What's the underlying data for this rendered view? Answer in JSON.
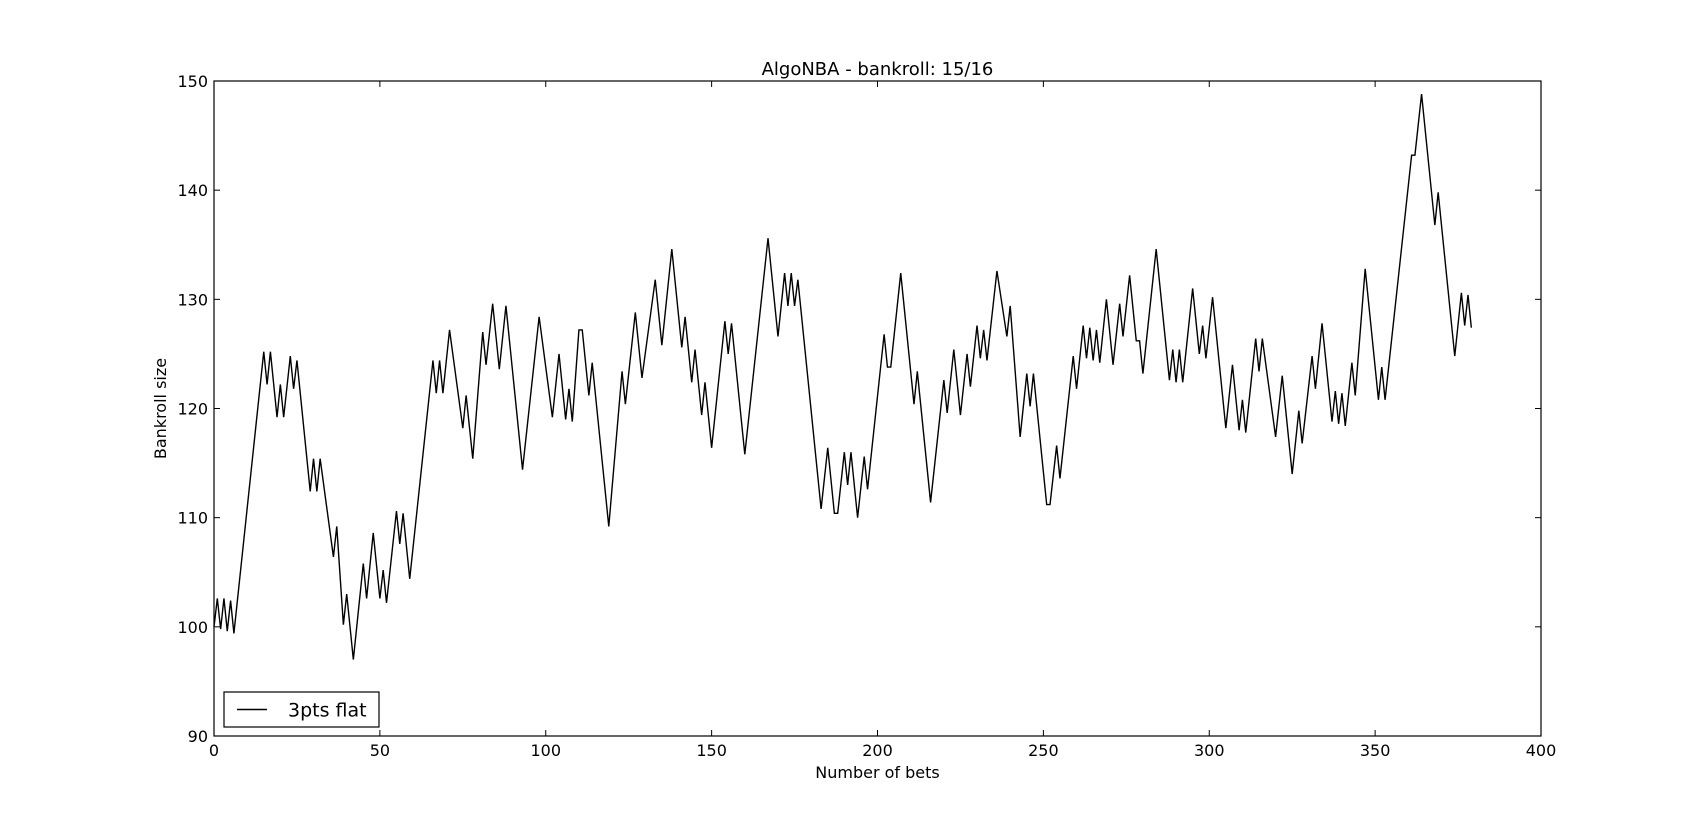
{
  "chart_data": {
    "type": "line",
    "title": "AlgoNBA - bankroll: 15/16",
    "xlabel": "Number of bets",
    "ylabel": "Bankroll size",
    "xlim": [
      0,
      400
    ],
    "ylim": [
      90,
      150
    ],
    "xticks": [
      0,
      50,
      100,
      150,
      200,
      250,
      300,
      350,
      400
    ],
    "yticks": [
      90,
      100,
      110,
      120,
      130,
      140,
      150
    ],
    "xtick_labels": [
      "0",
      "50",
      "100",
      "150",
      "200",
      "250",
      "300",
      "350",
      "400"
    ],
    "ytick_labels": [
      "90",
      "100",
      "110",
      "120",
      "130",
      "140",
      "150"
    ],
    "grid": false,
    "legend_position": "lower-left",
    "series": [
      {
        "name": "3pts flat",
        "color": "#000000",
        "points": [
          [
            0,
            100
          ],
          [
            1,
            102.6
          ],
          [
            2,
            99.8
          ],
          [
            3,
            102.6
          ],
          [
            4,
            99.6
          ],
          [
            5,
            102.4
          ],
          [
            6,
            99.4
          ],
          [
            15,
            125.2
          ],
          [
            16,
            122.2
          ],
          [
            17,
            125.2
          ],
          [
            19,
            119.2
          ],
          [
            20,
            122.2
          ],
          [
            21,
            119.2
          ],
          [
            23,
            124.8
          ],
          [
            24,
            121.8
          ],
          [
            25,
            124.4
          ],
          [
            29,
            112.4
          ],
          [
            30,
            115.4
          ],
          [
            31,
            112.4
          ],
          [
            32,
            115.4
          ],
          [
            36,
            106.4
          ],
          [
            37,
            109.2
          ],
          [
            39,
            100.2
          ],
          [
            40,
            103.0
          ],
          [
            42,
            97.0
          ],
          [
            45,
            105.8
          ],
          [
            46,
            102.6
          ],
          [
            48,
            108.6
          ],
          [
            50,
            102.6
          ],
          [
            51,
            105.2
          ],
          [
            52,
            102.2
          ],
          [
            55,
            110.6
          ],
          [
            56,
            107.6
          ],
          [
            57,
            110.4
          ],
          [
            59,
            104.4
          ],
          [
            66,
            124.4
          ],
          [
            67,
            121.4
          ],
          [
            68,
            124.4
          ],
          [
            69,
            121.4
          ],
          [
            71,
            127.2
          ],
          [
            75,
            118.2
          ],
          [
            76,
            121.2
          ],
          [
            78,
            115.4
          ],
          [
            81,
            127.0
          ],
          [
            82,
            124.0
          ],
          [
            84,
            129.6
          ],
          [
            86,
            123.6
          ],
          [
            88,
            129.4
          ],
          [
            93,
            114.4
          ],
          [
            98,
            128.4
          ],
          [
            102,
            119.2
          ],
          [
            104,
            125.0
          ],
          [
            106,
            119.0
          ],
          [
            107,
            121.8
          ],
          [
            108,
            118.8
          ],
          [
            110,
            127.2
          ],
          [
            111,
            127.2
          ],
          [
            113,
            121.2
          ],
          [
            114,
            124.2
          ],
          [
            119,
            109.2
          ],
          [
            123,
            123.4
          ],
          [
            124,
            120.4
          ],
          [
            127,
            128.8
          ],
          [
            129,
            122.8
          ],
          [
            133,
            131.8
          ],
          [
            135,
            125.8
          ],
          [
            138,
            134.6
          ],
          [
            141,
            125.6
          ],
          [
            142,
            128.4
          ],
          [
            144,
            122.4
          ],
          [
            145,
            125.4
          ],
          [
            147,
            119.4
          ],
          [
            148,
            122.4
          ],
          [
            150,
            116.4
          ],
          [
            154,
            128.0
          ],
          [
            155,
            125.0
          ],
          [
            156,
            127.8
          ],
          [
            160,
            115.8
          ],
          [
            167,
            135.6
          ],
          [
            170,
            126.6
          ],
          [
            172,
            132.4
          ],
          [
            173,
            129.4
          ],
          [
            174,
            132.4
          ],
          [
            175,
            129.4
          ],
          [
            176,
            131.8
          ],
          [
            183,
            110.8
          ],
          [
            185,
            116.4
          ],
          [
            187,
            110.4
          ],
          [
            188,
            110.4
          ],
          [
            190,
            116.0
          ],
          [
            191,
            113.0
          ],
          [
            192,
            116.0
          ],
          [
            194,
            110.0
          ],
          [
            196,
            115.6
          ],
          [
            197,
            112.6
          ],
          [
            202,
            126.8
          ],
          [
            203,
            123.8
          ],
          [
            204,
            123.8
          ],
          [
            207,
            132.4
          ],
          [
            211,
            120.4
          ],
          [
            212,
            123.4
          ],
          [
            216,
            111.4
          ],
          [
            220,
            122.6
          ],
          [
            221,
            119.6
          ],
          [
            223,
            125.4
          ],
          [
            225,
            119.4
          ],
          [
            227,
            125.0
          ],
          [
            228,
            122.0
          ],
          [
            230,
            127.6
          ],
          [
            231,
            124.6
          ],
          [
            232,
            127.2
          ],
          [
            233,
            124.4
          ],
          [
            236,
            132.6
          ],
          [
            239,
            126.6
          ],
          [
            240,
            129.4
          ],
          [
            243,
            117.4
          ],
          [
            245,
            123.2
          ],
          [
            246,
            120.2
          ],
          [
            247,
            123.2
          ],
          [
            251,
            111.2
          ],
          [
            252,
            111.2
          ],
          [
            254,
            116.6
          ],
          [
            255,
            113.6
          ],
          [
            259,
            124.8
          ],
          [
            260,
            121.8
          ],
          [
            262,
            127.6
          ],
          [
            263,
            124.6
          ],
          [
            264,
            127.4
          ],
          [
            265,
            124.4
          ],
          [
            266,
            127.2
          ],
          [
            267,
            124.2
          ],
          [
            269,
            130.0
          ],
          [
            271,
            124.0
          ],
          [
            273,
            129.6
          ],
          [
            274,
            126.6
          ],
          [
            276,
            132.2
          ],
          [
            278,
            126.2
          ],
          [
            279,
            126.2
          ],
          [
            280,
            123.2
          ],
          [
            284,
            134.6
          ],
          [
            288,
            122.6
          ],
          [
            289,
            125.4
          ],
          [
            290,
            122.4
          ],
          [
            291,
            125.4
          ],
          [
            292,
            122.4
          ],
          [
            295,
            131.0
          ],
          [
            297,
            125.0
          ],
          [
            298,
            127.6
          ],
          [
            299,
            124.6
          ],
          [
            301,
            130.2
          ],
          [
            305,
            118.2
          ],
          [
            307,
            124.0
          ],
          [
            309,
            118.0
          ],
          [
            310,
            120.8
          ],
          [
            311,
            117.8
          ],
          [
            314,
            126.4
          ],
          [
            315,
            123.4
          ],
          [
            316,
            126.4
          ],
          [
            320,
            117.4
          ],
          [
            322,
            123.0
          ],
          [
            325,
            114.0
          ],
          [
            327,
            119.8
          ],
          [
            328,
            116.8
          ],
          [
            331,
            124.8
          ],
          [
            332,
            121.8
          ],
          [
            334,
            127.8
          ],
          [
            337,
            118.8
          ],
          [
            338,
            121.6
          ],
          [
            339,
            118.6
          ],
          [
            340,
            121.4
          ],
          [
            341,
            118.4
          ],
          [
            343,
            124.2
          ],
          [
            344,
            121.2
          ],
          [
            347,
            132.8
          ],
          [
            351,
            120.8
          ],
          [
            352,
            123.8
          ],
          [
            353,
            120.8
          ],
          [
            361,
            143.2
          ],
          [
            362,
            143.2
          ],
          [
            364,
            148.8
          ],
          [
            368,
            136.8
          ],
          [
            369,
            139.8
          ],
          [
            374,
            124.8
          ],
          [
            376,
            130.6
          ],
          [
            377,
            127.6
          ],
          [
            378,
            130.4
          ],
          [
            379,
            127.4
          ]
        ]
      }
    ]
  }
}
